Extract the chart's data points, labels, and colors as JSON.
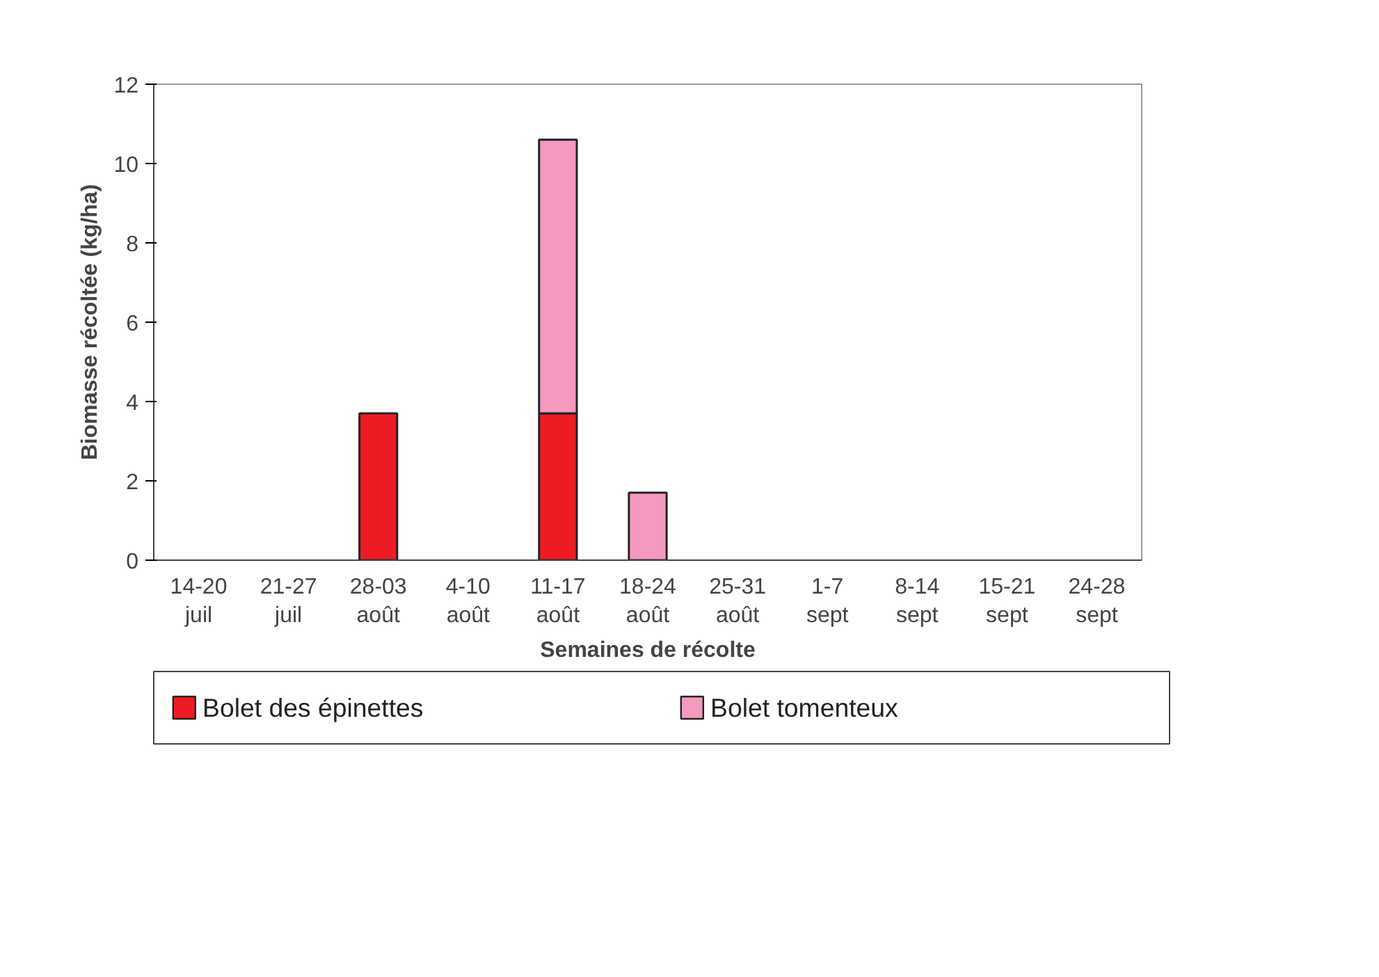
{
  "chart_data": {
    "type": "bar",
    "stacked": true,
    "xlabel": "Semaines de récolte",
    "ylabel": "Biomasse récoltée (kg/ha)",
    "categories": [
      "14-20\njuil",
      "21-27\njuil",
      "28-03\naoût",
      "4-10\naoût",
      "11-17\naoût",
      "18-24\naoût",
      "25-31\naoût",
      "1-7\nsept",
      "8-14\nsept",
      "15-21\nsept",
      "24-28\nsept"
    ],
    "series": [
      {
        "name": "Bolet des épinettes",
        "color": "#ed1c24",
        "values": [
          0,
          0,
          3.7,
          0,
          3.7,
          0,
          0,
          0,
          0,
          0,
          0
        ]
      },
      {
        "name": "Bolet tomenteux",
        "color": "#f49ac1",
        "values": [
          0,
          0,
          0,
          0,
          6.9,
          1.7,
          0,
          0,
          0,
          0,
          0
        ]
      }
    ],
    "ylim": [
      0,
      12
    ],
    "yticks": [
      0,
      2,
      4,
      6,
      8,
      10,
      12
    ],
    "grid": false,
    "legend": "bottom"
  }
}
